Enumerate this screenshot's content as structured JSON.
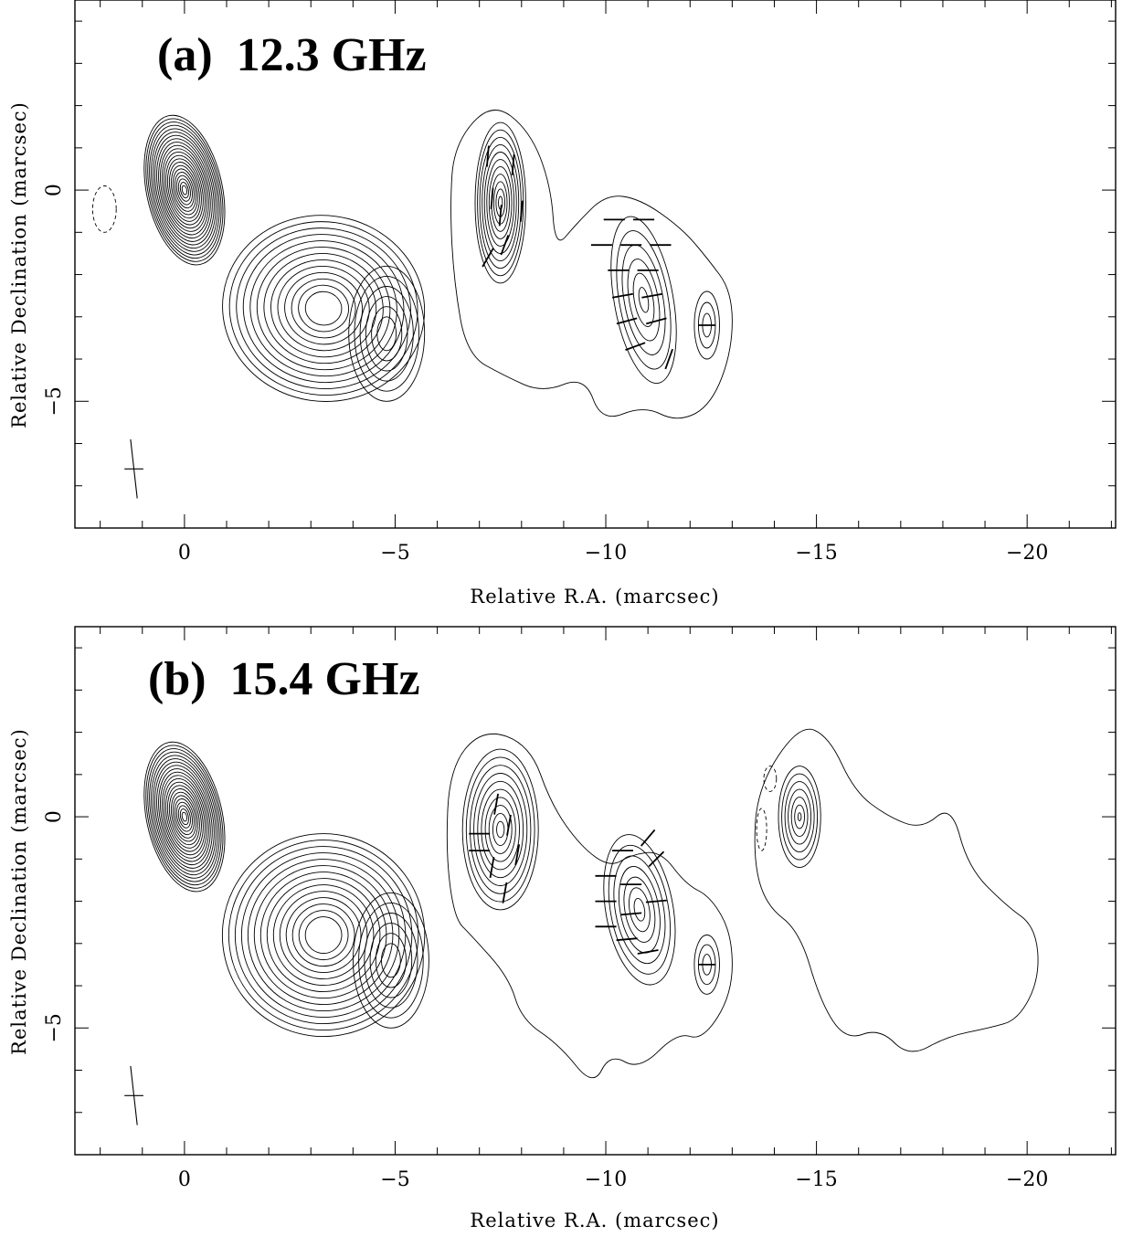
{
  "chart_data": [
    {
      "type": "contour",
      "title": "(a)  12.3 GHz",
      "xlabel": "Relative R.A. (marcsec)",
      "ylabel": "Relative Declination (marcsec)",
      "xlim": [
        2.6,
        -22.1
      ],
      "ylim": [
        -8.0,
        4.5
      ],
      "xticks": [
        0,
        -5,
        -10,
        -15,
        -20
      ],
      "xtick_labels": [
        "0",
        "−5",
        "−10",
        "−15",
        "−20"
      ],
      "yticks": [
        0,
        -5
      ],
      "ytick_labels": [
        "0",
        "−5"
      ],
      "beam": {
        "x": 1.2,
        "y": -6.6,
        "major": 1.4,
        "minor": 0.45
      },
      "components": [
        {
          "cx": 0.0,
          "cy": 0.0,
          "rx": 0.9,
          "ry": 1.8,
          "angle": -12,
          "levels": 22,
          "min_scale": 0.06
        },
        {
          "cx": -3.3,
          "cy": -2.8,
          "rx": 2.4,
          "ry": 2.2,
          "angle": 8,
          "levels": 13,
          "min_scale": 0.18
        },
        {
          "cx": -4.8,
          "cy": -3.4,
          "rx": 0.9,
          "ry": 1.6,
          "angle": 0,
          "levels": 6,
          "min_scale": 0.25
        },
        {
          "cx": -7.5,
          "cy": -0.3,
          "rx": 0.6,
          "ry": 1.9,
          "angle": 0,
          "levels": 11,
          "min_scale": 0.08
        },
        {
          "cx": -10.9,
          "cy": -2.6,
          "rx": 0.7,
          "ry": 2.0,
          "angle": -10,
          "levels": 6,
          "min_scale": 0.15
        },
        {
          "cx": -12.4,
          "cy": -3.2,
          "rx": 0.3,
          "ry": 0.8,
          "angle": 0,
          "levels": 3,
          "min_scale": 0.35
        }
      ],
      "negative_contours": [
        {
          "cx": 1.9,
          "cy": -0.45,
          "rx": 0.28,
          "ry": 0.55
        }
      ],
      "envelopes": [
        [
          [
            -6.4,
            1.1
          ],
          [
            -7.3,
            2.1
          ],
          [
            -8.2,
            1.4
          ],
          [
            -8.7,
            0.1
          ],
          [
            -8.8,
            -1.4
          ],
          [
            -9.3,
            -0.8
          ],
          [
            -10.0,
            -0.1
          ],
          [
            -10.8,
            -0.2
          ],
          [
            -11.8,
            -0.9
          ],
          [
            -12.4,
            -1.6
          ],
          [
            -13.0,
            -2.4
          ],
          [
            -13.0,
            -3.8
          ],
          [
            -12.5,
            -5.1
          ],
          [
            -11.7,
            -5.5
          ],
          [
            -10.9,
            -5.1
          ],
          [
            -9.9,
            -5.5
          ],
          [
            -9.5,
            -4.4
          ],
          [
            -8.5,
            -4.8
          ],
          [
            -7.6,
            -4.4
          ],
          [
            -6.7,
            -3.9
          ],
          [
            -6.4,
            -2.2
          ],
          [
            -6.3,
            -0.4
          ]
        ]
      ],
      "polarization_vectors": [
        {
          "x": -7.3,
          "y": -0.2,
          "len": 0.5,
          "angle": 85
        },
        {
          "x": -7.5,
          "y": -0.6,
          "len": 0.5,
          "angle": 85
        },
        {
          "x": -7.8,
          "y": 0.6,
          "len": 0.5,
          "angle": 85
        },
        {
          "x": -7.2,
          "y": 0.8,
          "len": 0.5,
          "angle": 85
        },
        {
          "x": -7.6,
          "y": -1.3,
          "len": 0.5,
          "angle": 70
        },
        {
          "x": -8.0,
          "y": -0.5,
          "len": 0.5,
          "angle": 85
        },
        {
          "x": -7.2,
          "y": -1.6,
          "len": 0.5,
          "angle": 60
        },
        {
          "x": -10.2,
          "y": -0.7,
          "len": 0.5,
          "angle": 0
        },
        {
          "x": -10.9,
          "y": -0.7,
          "len": 0.5,
          "angle": 0
        },
        {
          "x": -9.9,
          "y": -1.3,
          "len": 0.5,
          "angle": 0
        },
        {
          "x": -10.6,
          "y": -1.3,
          "len": 0.5,
          "angle": 0
        },
        {
          "x": -11.3,
          "y": -1.3,
          "len": 0.5,
          "angle": 0
        },
        {
          "x": -10.3,
          "y": -1.9,
          "len": 0.5,
          "angle": 0
        },
        {
          "x": -11.0,
          "y": -1.9,
          "len": 0.5,
          "angle": 0
        },
        {
          "x": -10.4,
          "y": -2.5,
          "len": 0.5,
          "angle": 10
        },
        {
          "x": -11.1,
          "y": -2.5,
          "len": 0.5,
          "angle": 10
        },
        {
          "x": -10.5,
          "y": -3.1,
          "len": 0.5,
          "angle": 15
        },
        {
          "x": -11.2,
          "y": -3.1,
          "len": 0.5,
          "angle": 15
        },
        {
          "x": -10.7,
          "y": -3.7,
          "len": 0.5,
          "angle": 20
        },
        {
          "x": -11.5,
          "y": -4.0,
          "len": 0.5,
          "angle": 70
        },
        {
          "x": -12.4,
          "y": -3.2,
          "len": 0.4,
          "angle": 0
        }
      ]
    },
    {
      "type": "contour",
      "title": "(b)  15.4 GHz",
      "xlabel": "Relative R.A. (marcsec)",
      "ylabel": "Relative Declination (marcsec)",
      "xlim": [
        2.6,
        -22.1
      ],
      "ylim": [
        -8.0,
        4.5
      ],
      "xticks": [
        0,
        -5,
        -10,
        -15,
        -20
      ],
      "xtick_labels": [
        "0",
        "−5",
        "−10",
        "−15",
        "−20"
      ],
      "yticks": [
        0,
        -5
      ],
      "ytick_labels": [
        "0",
        "−5"
      ],
      "beam": {
        "x": 1.2,
        "y": -6.6,
        "major": 1.4,
        "minor": 0.45
      },
      "components": [
        {
          "cx": 0.0,
          "cy": 0.0,
          "rx": 0.9,
          "ry": 1.8,
          "angle": -12,
          "levels": 22,
          "min_scale": 0.06
        },
        {
          "cx": -3.3,
          "cy": -2.8,
          "rx": 2.4,
          "ry": 2.4,
          "angle": 8,
          "levels": 14,
          "min_scale": 0.18
        },
        {
          "cx": -4.9,
          "cy": -3.4,
          "rx": 0.9,
          "ry": 1.6,
          "angle": 0,
          "levels": 6,
          "min_scale": 0.25
        },
        {
          "cx": -7.5,
          "cy": -0.3,
          "rx": 0.9,
          "ry": 1.9,
          "angle": 0,
          "levels": 10,
          "min_scale": 0.1
        },
        {
          "cx": -10.8,
          "cy": -2.2,
          "rx": 0.8,
          "ry": 1.8,
          "angle": -10,
          "levels": 7,
          "min_scale": 0.15
        },
        {
          "cx": -12.4,
          "cy": -3.5,
          "rx": 0.3,
          "ry": 0.7,
          "angle": 0,
          "levels": 3,
          "min_scale": 0.35
        },
        {
          "cx": -14.6,
          "cy": 0.0,
          "rx": 0.5,
          "ry": 1.2,
          "angle": 0,
          "levels": 7,
          "min_scale": 0.08
        }
      ],
      "negative_contours": [
        {
          "cx": -13.9,
          "cy": 0.9,
          "rx": 0.15,
          "ry": 0.3
        },
        {
          "cx": -13.7,
          "cy": -0.3,
          "rx": 0.12,
          "ry": 0.5
        }
      ],
      "envelopes": [
        [
          [
            -6.3,
            1.2
          ],
          [
            -7.1,
            2.1
          ],
          [
            -8.2,
            1.7
          ],
          [
            -8.7,
            0.3
          ],
          [
            -9.4,
            -0.7
          ],
          [
            -10.1,
            -1.2
          ],
          [
            -10.6,
            -0.9
          ],
          [
            -11.3,
            -0.8
          ],
          [
            -11.9,
            -1.6
          ],
          [
            -12.5,
            -1.9
          ],
          [
            -13.0,
            -2.8
          ],
          [
            -13.0,
            -4.2
          ],
          [
            -12.3,
            -5.3
          ],
          [
            -11.7,
            -5.1
          ],
          [
            -10.8,
            -6.0
          ],
          [
            -10.1,
            -5.6
          ],
          [
            -9.7,
            -6.4
          ],
          [
            -8.9,
            -5.4
          ],
          [
            -8.0,
            -4.8
          ],
          [
            -7.7,
            -3.8
          ],
          [
            -6.8,
            -2.8
          ],
          [
            -6.4,
            -2.4
          ],
          [
            -6.2,
            -0.8
          ]
        ],
        [
          [
            -13.6,
            0.7
          ],
          [
            -14.6,
            2.2
          ],
          [
            -15.3,
            1.9
          ],
          [
            -15.9,
            0.6
          ],
          [
            -16.7,
            0.0
          ],
          [
            -17.5,
            -0.3
          ],
          [
            -18.2,
            0.3
          ],
          [
            -18.6,
            -1.2
          ],
          [
            -19.5,
            -2.1
          ],
          [
            -20.2,
            -2.6
          ],
          [
            -20.3,
            -3.8
          ],
          [
            -19.8,
            -4.8
          ],
          [
            -19.1,
            -5.0
          ],
          [
            -18.1,
            -5.2
          ],
          [
            -17.2,
            -5.7
          ],
          [
            -16.5,
            -5.0
          ],
          [
            -15.7,
            -5.3
          ],
          [
            -15.1,
            -4.4
          ],
          [
            -14.6,
            -2.7
          ],
          [
            -13.8,
            -2.1
          ],
          [
            -13.5,
            -1.0
          ]
        ]
      ],
      "polarization_vectors": [
        {
          "x": -7.0,
          "y": -0.4,
          "len": 0.5,
          "angle": 0
        },
        {
          "x": -7.0,
          "y": -0.8,
          "len": 0.5,
          "angle": 0
        },
        {
          "x": -7.4,
          "y": 0.3,
          "len": 0.5,
          "angle": 80
        },
        {
          "x": -7.7,
          "y": -0.2,
          "len": 0.5,
          "angle": 80
        },
        {
          "x": -7.3,
          "y": -1.2,
          "len": 0.5,
          "angle": 80
        },
        {
          "x": -7.6,
          "y": -1.8,
          "len": 0.5,
          "angle": 80
        },
        {
          "x": -7.9,
          "y": -0.9,
          "len": 0.5,
          "angle": 80
        },
        {
          "x": -10.0,
          "y": -1.4,
          "len": 0.5,
          "angle": 0
        },
        {
          "x": -10.0,
          "y": -2.0,
          "len": 0.5,
          "angle": 0
        },
        {
          "x": -10.0,
          "y": -2.6,
          "len": 0.5,
          "angle": 0
        },
        {
          "x": -10.6,
          "y": -1.6,
          "len": 0.5,
          "angle": 0
        },
        {
          "x": -10.6,
          "y": -2.3,
          "len": 0.5,
          "angle": 5
        },
        {
          "x": -11.2,
          "y": -2.0,
          "len": 0.5,
          "angle": 5
        },
        {
          "x": -10.5,
          "y": -2.9,
          "len": 0.5,
          "angle": 5
        },
        {
          "x": -11.0,
          "y": -3.2,
          "len": 0.5,
          "angle": 10
        },
        {
          "x": -10.4,
          "y": -0.8,
          "len": 0.5,
          "angle": 0
        },
        {
          "x": -11.2,
          "y": -1.0,
          "len": 0.5,
          "angle": 45
        },
        {
          "x": -11.0,
          "y": -0.5,
          "len": 0.5,
          "angle": 50
        },
        {
          "x": -12.4,
          "y": -3.5,
          "len": 0.4,
          "angle": 0
        }
      ]
    }
  ]
}
